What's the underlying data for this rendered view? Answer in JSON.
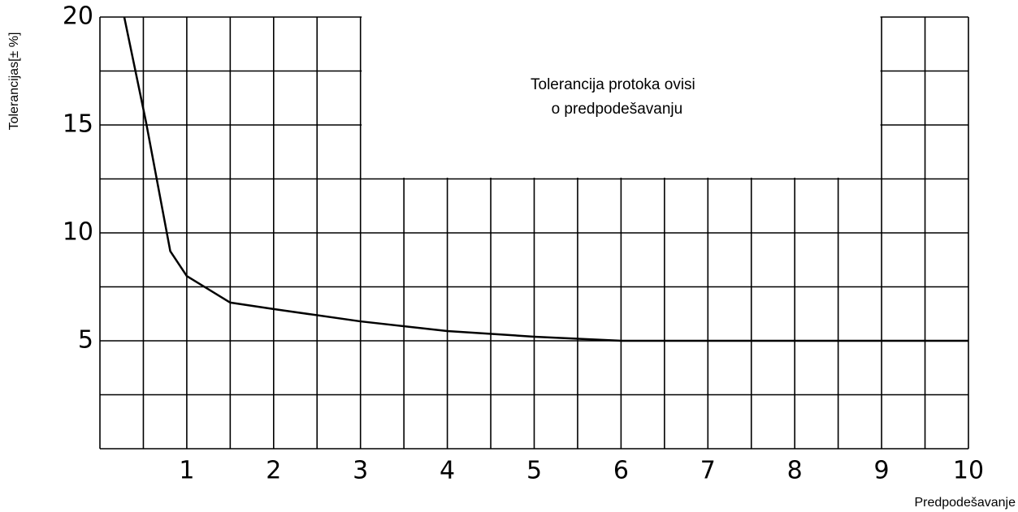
{
  "chart_data": {
    "type": "line",
    "y_label": "Tolerancijas[± %]",
    "x_label": "Predpodešavanje",
    "annotation": [
      "Tolerancija protoka ovisi",
      "o predpodešavanju"
    ],
    "annotation_box": {
      "xlim": [
        3,
        9
      ],
      "ylim": [
        12.5,
        20
      ]
    },
    "x": [
      0.28,
      0.53,
      0.81,
      1.0,
      1.5,
      2.0,
      3.0,
      4.0,
      5.0,
      6.0,
      10.0
    ],
    "values": [
      20,
      15.15,
      9.15,
      8.0,
      6.77,
      6.47,
      5.9,
      5.45,
      5.19,
      5.0,
      5.0
    ],
    "color": "#000000",
    "xlim": [
      0,
      10
    ],
    "ylim": [
      0,
      20
    ],
    "xticks": [
      1,
      2,
      3,
      4,
      5,
      6,
      7,
      8,
      9,
      10
    ],
    "yticks": [
      5,
      10,
      15,
      20
    ],
    "x_minor_ticks": [
      0.5,
      1.5,
      2.5,
      3.5,
      4.5,
      5.5,
      6.5,
      7.5,
      8.5,
      9.5
    ],
    "y_minor_ticks": [
      2.5,
      7.5,
      12.5,
      17.5
    ],
    "grid": true
  }
}
